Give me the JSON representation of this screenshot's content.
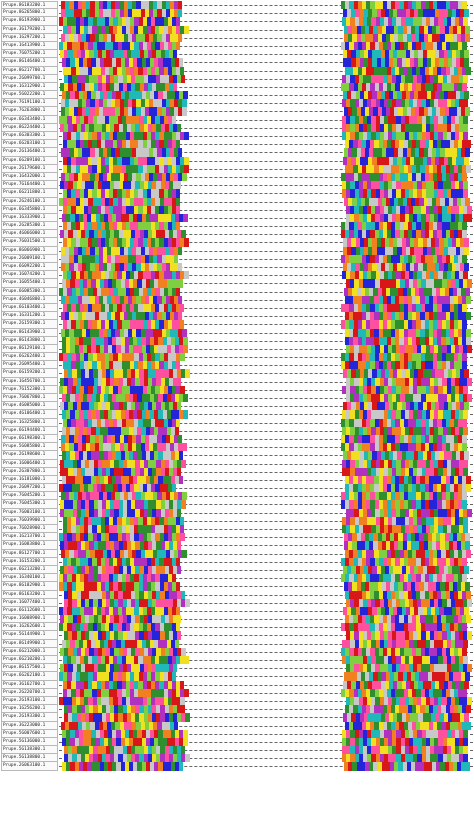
{
  "alignment": {
    "sequence_names": [
      "Prupe.8G183200.1",
      "Prupe.8G265800.1",
      "Prupe.8G193900.1",
      "Prupe.3G179200.1",
      "Prupe.1G297200.1",
      "Prupe.1G413900.1",
      "Prupe.7G075200.1",
      "Prupe.8G146400.1",
      "Prupe.8G217700.1",
      "Prupe.2G099700.1",
      "Prupe.1G312900.1",
      "Prupe.5G022200.1",
      "Prupe.7G191100.1",
      "Prupe.7G263800.1",
      "Prupe.6G343400.1",
      "Prupe.8G224400.1",
      "Prupe.6G303300.1",
      "Prupe.6G203100.1",
      "Prupe.2G136400.1",
      "Prupe.6G209100.1",
      "Prupe.2G179600.1",
      "Prupe.1G432000.1",
      "Prupe.7G164400.1",
      "Prupe.6G211800.1",
      "Prupe.2G246100.1",
      "Prupe.6G345800.1",
      "Prupe.1G333900.1",
      "Prupe.2G285300.1",
      "Prupe.4G066000.1",
      "Prupe.7G031500.1",
      "Prupe.8G066900.1",
      "Prupe.2G009100.1",
      "Prupe.6G092200.1",
      "Prupe.1G074200.1",
      "Prupe.1G055400.1",
      "Prupe.6G085300.1",
      "Prupe.4G046800.1",
      "Prupe.6G103400.1",
      "Prupe.1G331200.1",
      "Prupe.2G159300.1",
      "Prupe.8G143900.1",
      "Prupe.8G143800.1",
      "Prupe.8G129100.1",
      "Prupe.6G262400.1",
      "Prupe.2G095400.1",
      "Prupe.6G159200.1",
      "Prupe.1G456700.1",
      "Prupe.7G152300.1",
      "Prupe.7G067800.1",
      "Prupe.4G085000.1",
      "Prupe.4G106400.1",
      "Prupe.1G325800.1",
      "Prupe.6G194400.1",
      "Prupe.6G198300.1",
      "Prupe.5G085800.1",
      "Prupe.2G198600.1",
      "Prupe.1G006400.1",
      "Prupe.2G307800.1",
      "Prupe.1G181000.1",
      "Prupe.2G097200.1",
      "Prupe.7G045200.1",
      "Prupe.7G045300.1",
      "Prupe.7G003100.1",
      "Prupe.7G039900.1",
      "Prupe.7G028900.1",
      "Prupe.1G213700.1",
      "Prupe.1G083800.1",
      "Prupe.8G127700.1",
      "Prupe.1G153200.1",
      "Prupe.6G213200.1",
      "Prupe.1G340100.1",
      "Prupe.8G182900.1",
      "Prupe.8G163200.1",
      "Prupe.1G077400.1",
      "Prupe.6G112600.1",
      "Prupe.1G008900.1",
      "Prupe.1G262600.1",
      "Prupe.5G144900.1",
      "Prupe.8G149900.1",
      "Prupe.6G212000.1",
      "Prupe.6G210200.1",
      "Prupe.8G157500.1",
      "Prupe.6G262100.1",
      "Prupe.3G162700.1",
      "Prupe.2G220700.1",
      "Prupe.2G193100.1",
      "Prupe.1G256200.1",
      "Prupe.2G193300.1",
      "Prupe.3G223000.1",
      "Prupe.5G007600.1",
      "Prupe.5G136000.1",
      "Prupe.5G138300.1",
      "Prupe.5G138800.1",
      "Prupe.2G063100.1"
    ]
  },
  "colors": {
    "gap_line": "#666666",
    "name_border": "#b8b8b8",
    "residue_palette": [
      "#2424d8",
      "#2f8f2f",
      "#d81818",
      "#f0e020",
      "#20b8b8",
      "#f08020",
      "#b030c0",
      "#7fcf40",
      "#ff50a0",
      "#c8c8c8"
    ]
  }
}
